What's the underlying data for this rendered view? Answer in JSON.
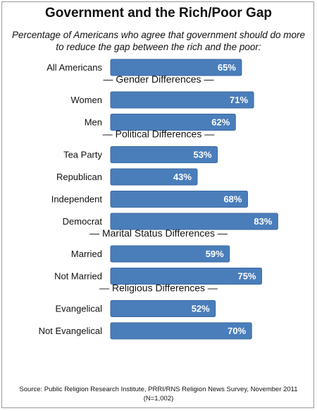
{
  "title": "Government and the Rich/Poor Gap",
  "subtitle": "Percentage of Americans who agree that government should do more to reduce the gap between the rich and the poor:",
  "source": "Source: Public Religion Research Institute, PRRI/RNS Religion News Survey, November 2011 (N=1,002)",
  "colors": {
    "bar": "#4a7ebb",
    "bar_edge": "#3c6aa3"
  },
  "chart_data": {
    "type": "bar",
    "orientation": "horizontal",
    "title": "Government and the Rich/Poor Gap",
    "value_suffix": "%",
    "xlim": [
      0,
      100
    ],
    "grid": false,
    "groups": [
      {
        "label": "",
        "categories": [
          "All Americans"
        ],
        "values": [
          65
        ]
      },
      {
        "label": "— Gender Differences —",
        "categories": [
          "Women",
          "Men"
        ],
        "values": [
          71,
          62
        ]
      },
      {
        "label": "— Political Differences —",
        "categories": [
          "Tea Party",
          "Republican",
          "Independent",
          "Democrat"
        ],
        "values": [
          53,
          43,
          68,
          83
        ]
      },
      {
        "label": "— Marital Status Differences —",
        "categories": [
          "Married",
          "Not Married"
        ],
        "values": [
          59,
          75
        ]
      },
      {
        "label": "— Religious Differences —",
        "categories": [
          "Evangelical",
          "Not Evangelical"
        ],
        "values": [
          52,
          70
        ]
      }
    ]
  }
}
